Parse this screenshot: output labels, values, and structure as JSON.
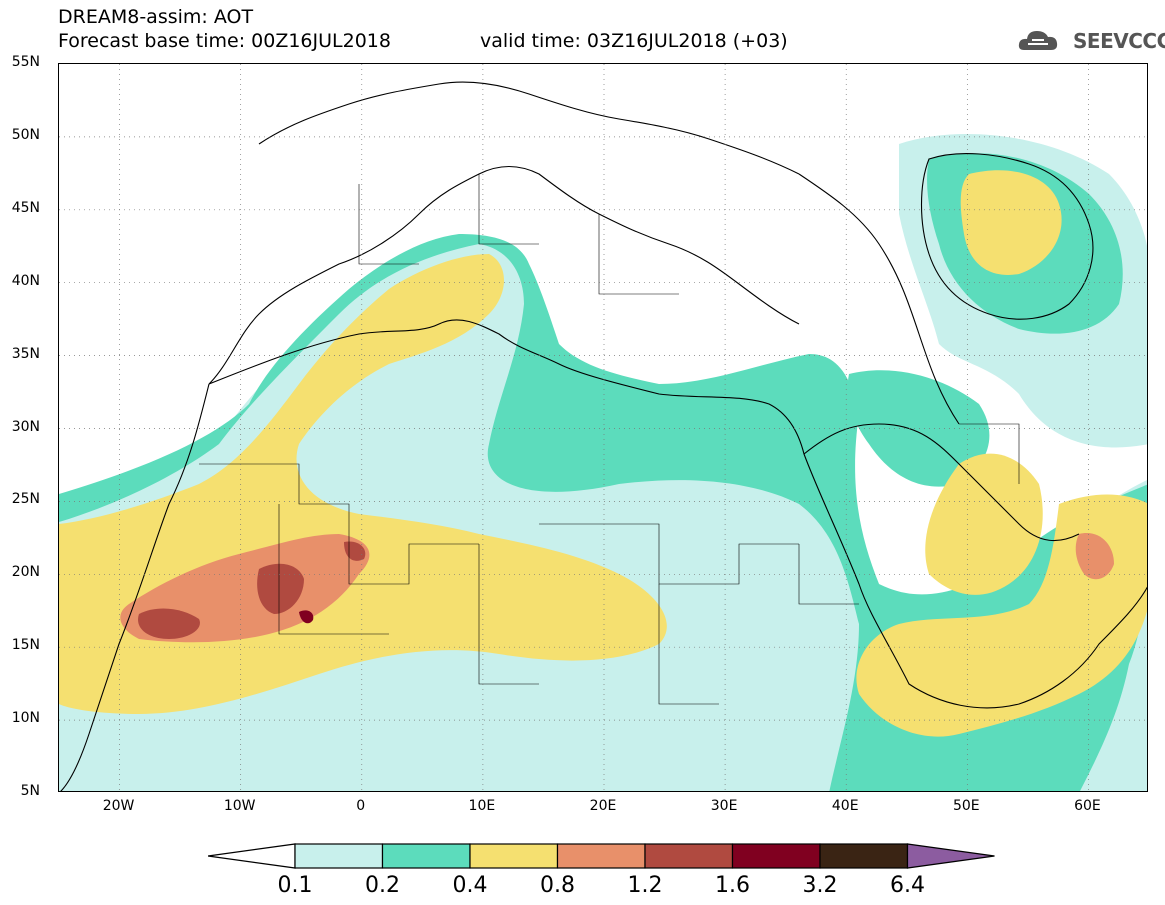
{
  "header": {
    "line1": "DREAM8-assim: AOT",
    "line2": "Forecast base time: 00Z16JUL2018",
    "line3": "valid time: 03Z16JUL2018 (+03)"
  },
  "logo": {
    "text": "SEEVCCC",
    "icon": "cloud-icon"
  },
  "map": {
    "lon_range": [
      -25,
      65
    ],
    "lat_range": [
      5,
      55
    ],
    "lat_ticks": [
      "55N",
      "50N",
      "45N",
      "40N",
      "35N",
      "30N",
      "25N",
      "20N",
      "15N",
      "10N",
      "5N"
    ],
    "lon_ticks": [
      "20W",
      "10W",
      "0",
      "10E",
      "20E",
      "30E",
      "40E",
      "50E",
      "60E"
    ],
    "grid": "dotted"
  },
  "colorbar": {
    "labels": [
      "0.1",
      "0.2",
      "0.4",
      "0.8",
      "1.2",
      "1.6",
      "3.2",
      "6.4"
    ],
    "colors": [
      "#ffffff",
      "#c8f0ec",
      "#5cdcbc",
      "#f5e070",
      "#e8906a",
      "#b04a40",
      "#800020",
      "#3a2414",
      "#8c5ca0"
    ]
  }
}
